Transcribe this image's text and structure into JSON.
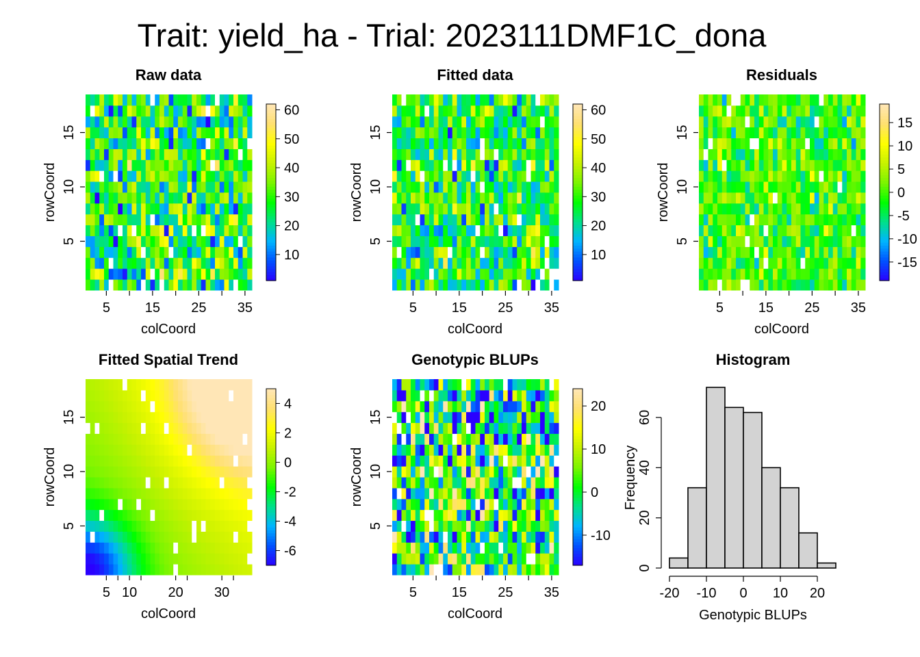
{
  "title": "Trait: yield_ha - Trial: 2023111DMF1C_dona",
  "colors": {
    "scale": [
      "#2a00ff",
      "#0050ff",
      "#00b4ff",
      "#00e08a",
      "#00ff00",
      "#7cf500",
      "#c8f200",
      "#ffff00",
      "#ffe070",
      "#ffe6b6"
    ],
    "missing": "#ffffff",
    "hist_fill": "#d3d3d3",
    "hist_border": "#000000"
  },
  "chart_data": [
    {
      "type": "heatmap",
      "title": "Raw data",
      "xlabel": "colCoord",
      "ylabel": "rowCoord",
      "xlim": [
        1,
        36
      ],
      "ylim": [
        1,
        18
      ],
      "xticks": [
        5,
        15,
        25,
        35
      ],
      "yticks": [
        5,
        10,
        15
      ],
      "zlim": [
        1,
        62
      ],
      "legend_ticks": [
        10,
        20,
        30,
        40,
        50,
        60
      ],
      "pattern": "noise",
      "center": 28,
      "spread": 30,
      "seed": 11
    },
    {
      "type": "heatmap",
      "title": "Fitted data",
      "xlabel": "colCoord",
      "ylabel": "rowCoord",
      "xlim": [
        1,
        36
      ],
      "ylim": [
        1,
        18
      ],
      "xticks": [
        5,
        15,
        25,
        35
      ],
      "yticks": [
        5,
        10,
        15
      ],
      "zlim": [
        1,
        62
      ],
      "legend_ticks": [
        10,
        20,
        30,
        40,
        50,
        60
      ],
      "pattern": "noise",
      "center": 28,
      "spread": 26,
      "seed": 23
    },
    {
      "type": "heatmap",
      "title": "Residuals",
      "xlabel": "colCoord",
      "ylabel": "rowCoord",
      "xlim": [
        1,
        36
      ],
      "ylim": [
        1,
        18
      ],
      "xticks": [
        5,
        15,
        25,
        35
      ],
      "yticks": [
        5,
        10,
        15
      ],
      "zlim": [
        -19,
        19
      ],
      "legend_ticks": [
        -15,
        -10,
        -5,
        0,
        5,
        10,
        15
      ],
      "pattern": "noise",
      "center": 0,
      "spread": 12,
      "seed": 37
    },
    {
      "type": "heatmap",
      "title": "Fitted Spatial Trend",
      "xlabel": "colCoord",
      "ylabel": "rowCoord",
      "xlim": [
        1,
        36
      ],
      "ylim": [
        1,
        18
      ],
      "xticks": [
        5,
        10,
        20,
        30
      ],
      "yticks": [
        5,
        10,
        15
      ],
      "zlim": [
        -7,
        5
      ],
      "legend_ticks": [
        -6,
        -4,
        -2,
        0,
        2,
        4
      ],
      "pattern": "trend",
      "seed": 5
    },
    {
      "type": "heatmap",
      "title": "Genotypic BLUPs",
      "xlabel": "colCoord",
      "ylabel": "rowCoord",
      "xlim": [
        1,
        36
      ],
      "ylim": [
        1,
        18
      ],
      "xticks": [
        5,
        15,
        25,
        35
      ],
      "yticks": [
        5,
        10,
        15
      ],
      "zlim": [
        -17,
        24
      ],
      "legend_ticks": [
        -10,
        0,
        10,
        20
      ],
      "pattern": "noise",
      "center": 1,
      "spread": 30,
      "seed": 53
    },
    {
      "type": "bar",
      "title": "Histogram",
      "xlabel": "Genotypic BLUPs",
      "ylabel": "Frequency",
      "bin_edges": [
        -20,
        -15,
        -10,
        -5,
        0,
        5,
        10,
        15,
        20,
        25
      ],
      "values": [
        4,
        32,
        72,
        64,
        62,
        40,
        32,
        14,
        2
      ],
      "xticks": [
        -20,
        -10,
        0,
        10,
        20
      ],
      "yticks": [
        0,
        20,
        40,
        60
      ],
      "xlim": [
        -20,
        25
      ],
      "ylim": [
        0,
        72
      ]
    }
  ]
}
